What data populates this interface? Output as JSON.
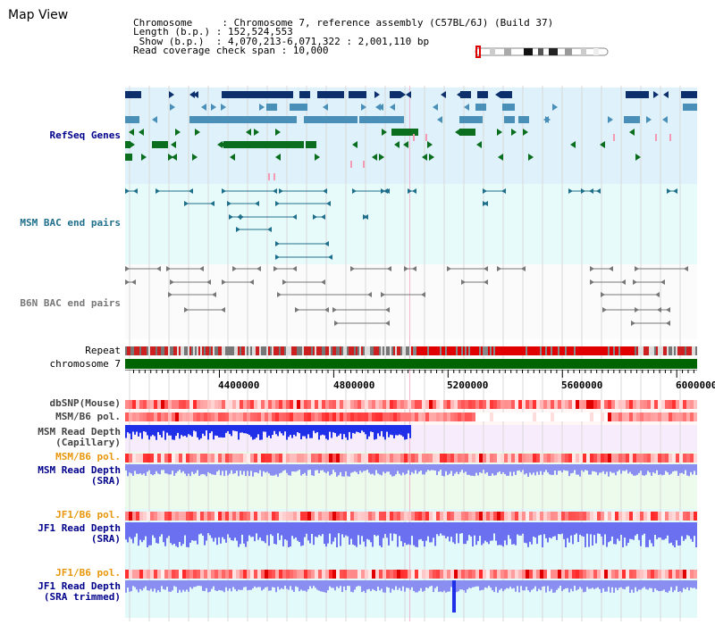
{
  "map": {
    "title": "Map View",
    "info_lines": [
      "Chromosome     : Chromosome 7, reference assembly (C57BL/6J) (Build 37)",
      "Length (b.p.) : 152,524,553",
      " Show (b.p.)  : 4,070,213-6,071,322 : 2,001,110 bp",
      "Read coverage check span : 10,000"
    ]
  },
  "tracks": {
    "refseq": "RefSeq Genes",
    "msm_bac": "MSM BAC end pairs",
    "b6n_bac": "B6N BAC end pairs",
    "repeat": "Repeat",
    "chromosome": "chromosome 7",
    "dbsnp": "dbSNP(Mouse)",
    "msm_b6_pol_1": "MSM/B6 pol.",
    "msm_depth_cap": "MSM Read Depth\n(Capillary)",
    "msm_b6_pol_2": "MSM/B6 pol.",
    "msm_depth_sra": "MSM Read Depth\n(SRA)",
    "jf1_b6_pol_1": "JF1/B6 pol.",
    "jf1_depth_sra": "JF1 Read Depth\n(SRA)",
    "jf1_b6_pol_2": "JF1/B6 pol.",
    "jf1_depth_trim": "JF1 Read Depth\n(SRA trimmed)"
  },
  "axis": {
    "ticks": [
      "4400000",
      "4800000",
      "5200000",
      "5600000",
      "6000000"
    ],
    "start": 4070213,
    "end": 6071322
  },
  "colors": {
    "refseq_dark": "#0d2f6b",
    "refseq_mid": "#4a8fb8",
    "refseq_green": "#0a6e1e",
    "msm_bac": "#1f6f8b",
    "b6n_bac": "#777777",
    "pol_label": "#e8960a",
    "depth_label": "#00008b",
    "chromosome": "#006400"
  }
}
